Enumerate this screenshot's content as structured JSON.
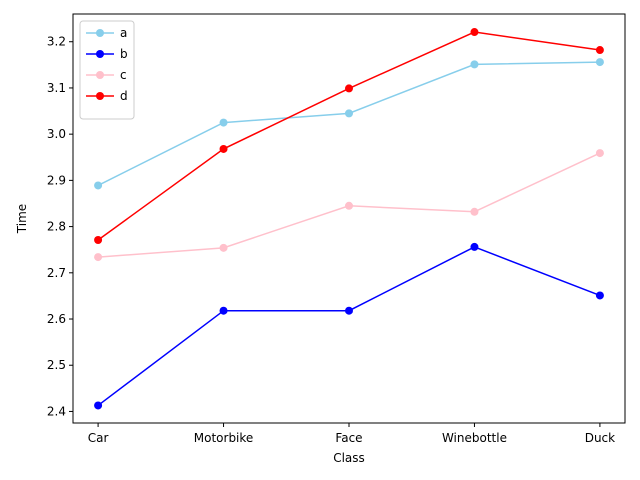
{
  "chart_data": {
    "type": "line",
    "categories": [
      "Car",
      "Motorbike",
      "Face",
      "Winebottle",
      "Duck"
    ],
    "xlabel": "Class",
    "ylabel": "Time",
    "ylim": [
      2.375,
      3.26
    ],
    "yticks": [
      2.4,
      2.5,
      2.6,
      2.7,
      2.8,
      2.9,
      3.0,
      3.1,
      3.2
    ],
    "grid": false,
    "legend_position": "top-left",
    "series": [
      {
        "name": "a",
        "color": "#87ceeb",
        "values": [
          2.889,
          3.025,
          3.045,
          3.151,
          3.156
        ]
      },
      {
        "name": "b",
        "color": "#0000ff",
        "values": [
          2.413,
          2.618,
          2.618,
          2.756,
          2.651
        ]
      },
      {
        "name": "c",
        "color": "#ffc0cb",
        "values": [
          2.734,
          2.754,
          2.845,
          2.832,
          2.959
        ]
      },
      {
        "name": "d",
        "color": "#ff0000",
        "values": [
          2.771,
          2.968,
          3.099,
          3.221,
          3.182
        ]
      }
    ]
  }
}
